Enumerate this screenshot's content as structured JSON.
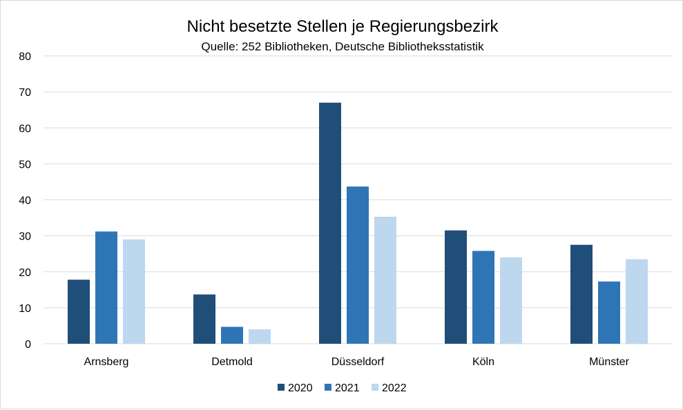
{
  "chart_data": {
    "type": "bar",
    "title": "Nicht besetzte Stellen je Regierungsbezirk",
    "subtitle": "Quelle: 252 Bibliotheken, Deutsche Bibliotheksstatistik",
    "categories": [
      "Arnsberg",
      "Detmold",
      "Düsseldorf",
      "Köln",
      "Münster"
    ],
    "series": [
      {
        "name": "2020",
        "color": "#1f4e79",
        "values": [
          17.8,
          13.7,
          67,
          31.5,
          27.5
        ]
      },
      {
        "name": "2021",
        "color": "#2e75b6",
        "values": [
          31.2,
          4.7,
          43.7,
          25.8,
          17.3
        ]
      },
      {
        "name": "2022",
        "color": "#bdd7ee",
        "values": [
          29,
          4,
          35.3,
          24,
          23.5
        ]
      }
    ],
    "xlabel": "",
    "ylabel": "",
    "ylim": [
      0,
      80
    ],
    "yticks": [
      0,
      10,
      20,
      30,
      40,
      50,
      60,
      70,
      80
    ],
    "grid": true,
    "gridColor": "#d9d9d9",
    "legend": "bottom"
  }
}
